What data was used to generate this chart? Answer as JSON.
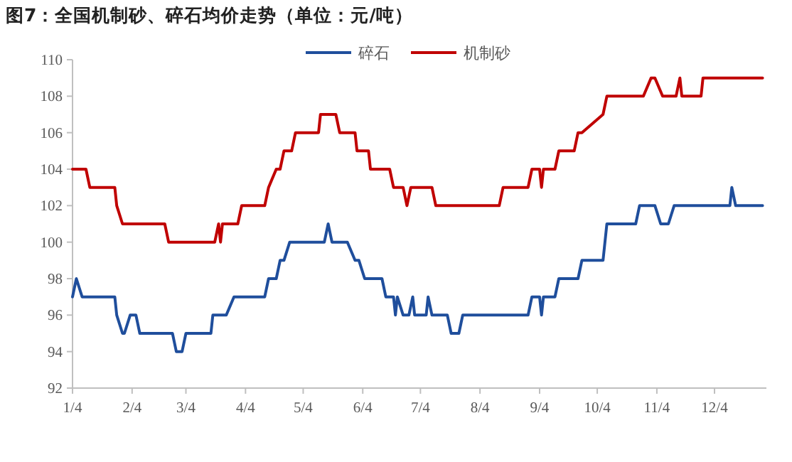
{
  "chart_data": {
    "type": "line",
    "title": "图7：全国机制砂、碎石均价走势（单位：元/吨）",
    "legend": "top",
    "marker": "none",
    "line_style": "solid",
    "grid": false,
    "xlim": [
      "--01-04",
      "--12-31"
    ],
    "xticks": [
      {
        "value": "--01-04",
        "label": "1/4"
      },
      {
        "value": "--02-04",
        "label": "2/4"
      },
      {
        "value": "--03-04",
        "label": "3/4"
      },
      {
        "value": "--04-04",
        "label": "4/4"
      },
      {
        "value": "--05-04",
        "label": "5/4"
      },
      {
        "value": "--06-04",
        "label": "6/4"
      },
      {
        "value": "--07-04",
        "label": "7/4"
      },
      {
        "value": "--08-04",
        "label": "8/4"
      },
      {
        "value": "--09-04",
        "label": "9/4"
      },
      {
        "value": "--10-04",
        "label": "10/4"
      },
      {
        "value": "--11-04",
        "label": "11/4"
      },
      {
        "value": "--12-04",
        "label": "12/4"
      }
    ],
    "ylim": [
      92,
      110
    ],
    "yticks": [
      92,
      94,
      96,
      98,
      100,
      102,
      104,
      106,
      108,
      110
    ],
    "series": [
      {
        "name": "碎石",
        "color": "#1f4e9c",
        "x": [
          "--01-04",
          "--01-06",
          "--01-09",
          "--01-26",
          "--01-27",
          "--01-30",
          "--01-31",
          "--02-03",
          "--02-06",
          "--02-08",
          "--02-25",
          "--02-27",
          "--03-02",
          "--03-04",
          "--03-17",
          "--03-18",
          "--03-25",
          "--03-29",
          "--04-14",
          "--04-16",
          "--04-20",
          "--04-22",
          "--04-24",
          "--04-27",
          "--05-15",
          "--05-17",
          "--05-19",
          "--05-27",
          "--05-31",
          "--06-02",
          "--06-05",
          "--06-14",
          "--06-16",
          "--06-20",
          "--06-21",
          "--06-22",
          "--06-25",
          "--06-28",
          "--06-30",
          "--07-01",
          "--07-07",
          "--07-08",
          "--07-10",
          "--07-18",
          "--07-20",
          "--07-24",
          "--07-26",
          "--08-29",
          "--08-31",
          "--09-04",
          "--09-05",
          "--09-06",
          "--09-12",
          "--09-14",
          "--09-24",
          "--09-26",
          "--10-07",
          "--10-09",
          "--10-24",
          "--10-26",
          "--11-03",
          "--11-06",
          "--11-10",
          "--11-13",
          "--12-12",
          "--12-13",
          "--12-15",
          "--12-29"
        ],
        "values": [
          97,
          98,
          97,
          97,
          96,
          95,
          95,
          96,
          96,
          95,
          95,
          94,
          94,
          95,
          95,
          96,
          96,
          97,
          97,
          98,
          98,
          99,
          99,
          100,
          100,
          101,
          100,
          100,
          99,
          99,
          98,
          98,
          97,
          97,
          96,
          97,
          96,
          96,
          97,
          96,
          96,
          97,
          96,
          96,
          95,
          95,
          96,
          96,
          97,
          97,
          96,
          97,
          97,
          98,
          98,
          99,
          99,
          101,
          101,
          102,
          102,
          101,
          101,
          102,
          102,
          103,
          102,
          102
        ]
      },
      {
        "name": "机制砂",
        "color": "#c00000",
        "x": [
          "--01-04",
          "--01-11",
          "--01-13",
          "--01-26",
          "--01-27",
          "--01-30",
          "--02-21",
          "--02-23",
          "--03-19",
          "--03-21",
          "--03-22",
          "--03-23",
          "--03-31",
          "--04-02",
          "--04-14",
          "--04-16",
          "--04-20",
          "--04-22",
          "--04-24",
          "--04-28",
          "--04-30",
          "--05-12",
          "--05-13",
          "--05-21",
          "--05-23",
          "--05-31",
          "--06-01",
          "--06-07",
          "--06-08",
          "--06-18",
          "--06-20",
          "--06-25",
          "--06-27",
          "--06-29",
          "--07-10",
          "--07-12",
          "--08-14",
          "--08-16",
          "--08-29",
          "--08-31",
          "--09-04",
          "--09-05",
          "--09-06",
          "--09-12",
          "--09-14",
          "--09-22",
          "--09-24",
          "--09-26",
          "--10-07",
          "--10-09",
          "--10-28",
          "--11-01",
          "--11-03",
          "--11-07",
          "--11-14",
          "--11-16",
          "--11-17",
          "--11-27",
          "--11-28",
          "--12-29"
        ],
        "values": [
          104,
          104,
          103,
          103,
          102,
          101,
          101,
          100,
          100,
          101,
          100,
          101,
          101,
          102,
          102,
          103,
          104,
          104,
          105,
          105,
          106,
          106,
          107,
          107,
          106,
          106,
          105,
          105,
          104,
          104,
          103,
          103,
          102,
          103,
          103,
          102,
          102,
          103,
          103,
          104,
          104,
          103,
          104,
          104,
          105,
          105,
          106,
          106,
          107,
          108,
          108,
          109,
          109,
          108,
          108,
          109,
          108,
          108,
          109,
          109
        ]
      }
    ]
  }
}
